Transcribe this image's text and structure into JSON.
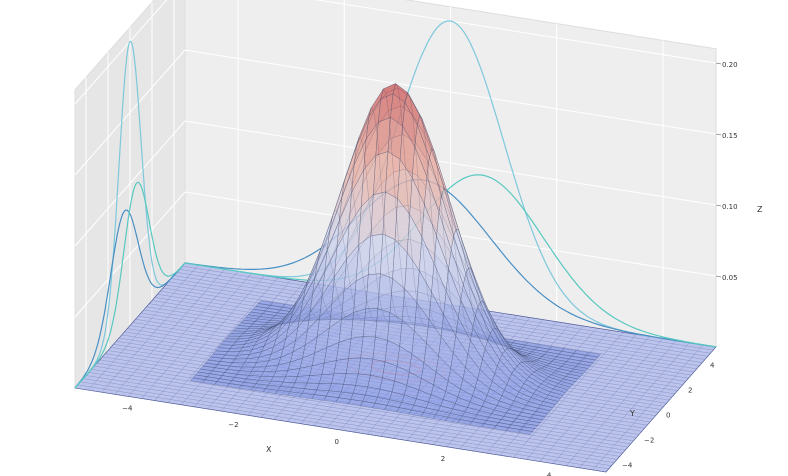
{
  "chart_data": {
    "type": "surface3d",
    "title": "",
    "xlabel": "X",
    "ylabel": "Y",
    "zlabel": "Z",
    "x_ticks": [
      -4,
      -2,
      0,
      2,
      4
    ],
    "y_ticks": [
      -4,
      -2,
      0,
      2,
      4
    ],
    "z_ticks": [
      0.05,
      0.1,
      0.15,
      0.2
    ],
    "x_tick_labels": [
      "−4",
      "−2",
      "0",
      "2",
      "4"
    ],
    "y_tick_labels": [
      "−4",
      "−2",
      "0",
      "2",
      "4"
    ],
    "z_tick_labels": [
      "0.05",
      "0.10",
      "0.15",
      "0.20"
    ],
    "xlim": [
      -5,
      5
    ],
    "ylim": [
      -5,
      5
    ],
    "zlim": [
      0,
      0.21
    ],
    "grid": true,
    "colormap": "coolwarm",
    "surface": {
      "function": "bivariate_gaussian",
      "peak_z": 0.2,
      "mean": [
        0,
        0
      ],
      "sigma": [
        1,
        1
      ]
    },
    "projections": [
      {
        "plane": "xz",
        "curves": [
          {
            "name": "",
            "peak_z": 0.2,
            "color": "#7ec8dc"
          },
          {
            "name": "",
            "peak_z": 0.085,
            "color": "#4a8fc4"
          },
          {
            "name": "",
            "peak_z": 0.095,
            "color": "#58c8c0"
          }
        ]
      },
      {
        "plane": "yz",
        "curves": [
          {
            "name": "",
            "peak_z": 0.2,
            "color": "#7ec8dc"
          },
          {
            "name": "",
            "peak_z": 0.085,
            "color": "#4a8fc4"
          },
          {
            "name": "",
            "peak_z": 0.095,
            "color": "#58c8c0"
          }
        ]
      }
    ],
    "colors": {
      "pane_back": "#eeeeee",
      "pane_left": "#e6e6e6",
      "floor": "#bcc4ec",
      "peak": "#cc5a5a",
      "base": "#7d92e4"
    }
  }
}
